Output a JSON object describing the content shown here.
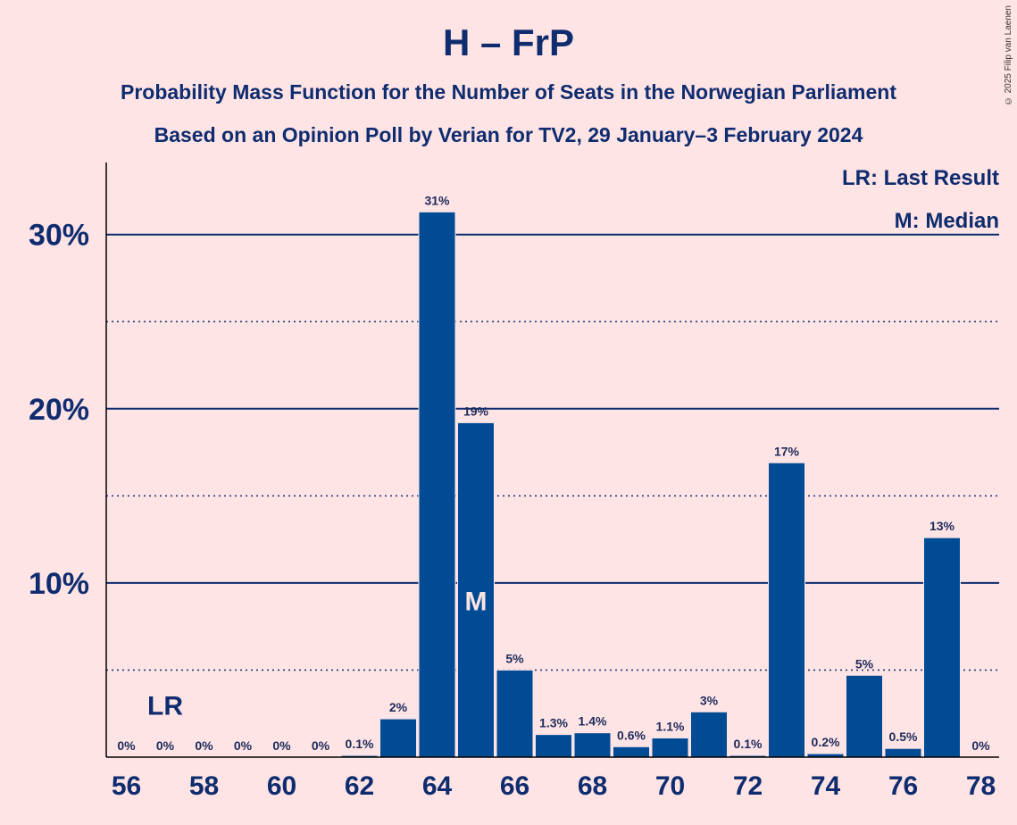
{
  "title": "H – FrP",
  "subtitle1": "Probability Mass Function for the Number of Seats in the Norwegian Parliament",
  "subtitle2": "Based on an Opinion Poll by Verian for TV2, 29 January–3 February 2024",
  "copyright": "© 2025 Filip van Laenen",
  "legend": {
    "last_result": "LR: Last Result",
    "median": "M: Median"
  },
  "colors": {
    "background": "#FFE4E6",
    "bar": "#004B93",
    "text": "#0E2C6E"
  },
  "chart_data": {
    "type": "bar",
    "x": [
      56,
      57,
      58,
      59,
      60,
      61,
      62,
      63,
      64,
      65,
      66,
      67,
      68,
      69,
      70,
      71,
      72,
      73,
      74,
      75,
      76,
      77,
      78
    ],
    "values": [
      0,
      0,
      0,
      0,
      0,
      0,
      0.1,
      2.2,
      31.3,
      19.2,
      5.0,
      1.3,
      1.4,
      0.6,
      1.1,
      2.6,
      0.1,
      16.9,
      0.2,
      4.7,
      0.5,
      12.6,
      0
    ],
    "data_labels": [
      "0%",
      "0%",
      "0%",
      "0%",
      "0%",
      "0%",
      "0.1%",
      "2%",
      "31%",
      "19%",
      "5%",
      "1.3%",
      "1.4%",
      "0.6%",
      "1.1%",
      "3%",
      "0.1%",
      "17%",
      "0.2%",
      "5%",
      "0.5%",
      "13%",
      "0%"
    ],
    "x_tick_labels": [
      "56",
      "58",
      "60",
      "62",
      "64",
      "66",
      "68",
      "70",
      "72",
      "74",
      "76",
      "78"
    ],
    "y_tick_labels": [
      "10%",
      "20%",
      "30%"
    ],
    "ylim": [
      0,
      34
    ],
    "major_grid": [
      10,
      20,
      30
    ],
    "minor_grid": [
      5,
      15,
      25
    ],
    "last_result_seat": 57,
    "last_result_label": "LR",
    "median_seat": 65,
    "median_label": "M"
  }
}
